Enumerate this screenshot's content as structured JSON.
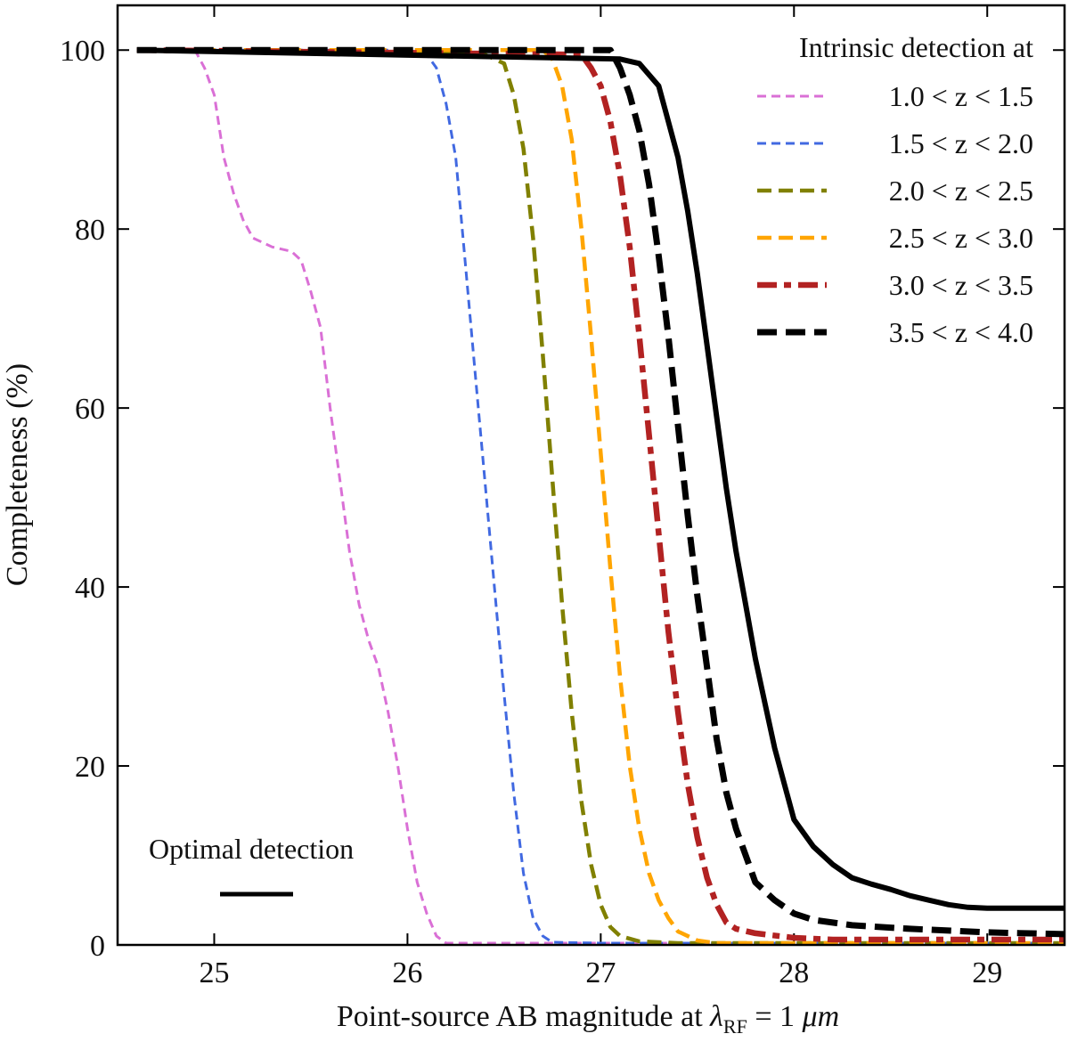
{
  "chart_data": {
    "type": "line",
    "title": "",
    "xlabel": "Point-source AB magnitude at λ_RF = 1 μm",
    "xlabel_parts": {
      "prefix": "Point-source AB magnitude at ",
      "lambda": "λ",
      "sub": "RF",
      "eq": " = 1 ",
      "unit": "μm"
    },
    "ylabel": "Completeness (%)",
    "xlim": [
      24.5,
      29.4
    ],
    "ylim": [
      0,
      105
    ],
    "xticks": [
      25,
      26,
      27,
      28,
      29
    ],
    "yticks": [
      0,
      20,
      40,
      60,
      80,
      100
    ],
    "legend": {
      "title": "Intrinsic detection at",
      "placement": "top-right"
    },
    "annotation": "Optimal detection",
    "series": [
      {
        "name": "1.0 < z < 1.5",
        "color": "#DA70D6",
        "style": "dashed-thin",
        "points": [
          [
            24.6,
            100
          ],
          [
            24.9,
            100
          ],
          [
            24.95,
            98
          ],
          [
            25.0,
            95
          ],
          [
            25.05,
            88
          ],
          [
            25.1,
            84
          ],
          [
            25.15,
            81
          ],
          [
            25.2,
            79
          ],
          [
            25.3,
            78
          ],
          [
            25.4,
            77.5
          ],
          [
            25.45,
            76.5
          ],
          [
            25.5,
            73
          ],
          [
            25.55,
            69
          ],
          [
            25.6,
            60
          ],
          [
            25.65,
            52
          ],
          [
            25.7,
            44
          ],
          [
            25.75,
            38
          ],
          [
            25.8,
            34
          ],
          [
            25.85,
            31
          ],
          [
            25.9,
            26
          ],
          [
            25.95,
            20
          ],
          [
            26.0,
            13
          ],
          [
            26.05,
            7
          ],
          [
            26.1,
            3.5
          ],
          [
            26.15,
            1
          ],
          [
            26.2,
            0.2
          ],
          [
            26.5,
            0.2
          ],
          [
            27.5,
            0.2
          ],
          [
            29.4,
            0.2
          ]
        ]
      },
      {
        "name": "1.5 < z < 2.0",
        "color": "#4169E1",
        "style": "dashed-thin",
        "points": [
          [
            24.6,
            100
          ],
          [
            26.0,
            100
          ],
          [
            26.1,
            99.5
          ],
          [
            26.15,
            98
          ],
          [
            26.2,
            94
          ],
          [
            26.25,
            88
          ],
          [
            26.3,
            76
          ],
          [
            26.35,
            64
          ],
          [
            26.4,
            52
          ],
          [
            26.45,
            40
          ],
          [
            26.5,
            28
          ],
          [
            26.55,
            17
          ],
          [
            26.6,
            8
          ],
          [
            26.65,
            3
          ],
          [
            26.7,
            1
          ],
          [
            26.75,
            0.3
          ],
          [
            27.0,
            0.2
          ],
          [
            29.4,
            0.2
          ]
        ]
      },
      {
        "name": "2.0 < z < 2.5",
        "color": "#808000",
        "style": "dashed-medium",
        "points": [
          [
            24.6,
            100
          ],
          [
            26.4,
            99.5
          ],
          [
            26.5,
            98.5
          ],
          [
            26.55,
            95
          ],
          [
            26.6,
            89
          ],
          [
            26.65,
            79
          ],
          [
            26.7,
            66
          ],
          [
            26.75,
            52
          ],
          [
            26.8,
            38
          ],
          [
            26.85,
            26
          ],
          [
            26.9,
            16
          ],
          [
            26.95,
            9
          ],
          [
            27.0,
            4.5
          ],
          [
            27.05,
            2
          ],
          [
            27.1,
            1
          ],
          [
            27.2,
            0.4
          ],
          [
            27.4,
            0.2
          ],
          [
            29.4,
            0.2
          ]
        ]
      },
      {
        "name": "2.5 < z < 3.0",
        "color": "#FFA500",
        "style": "dashed-medium",
        "points": [
          [
            24.6,
            100
          ],
          [
            26.7,
            100
          ],
          [
            26.75,
            99
          ],
          [
            26.8,
            96
          ],
          [
            26.85,
            90
          ],
          [
            26.9,
            80
          ],
          [
            26.95,
            68
          ],
          [
            27.0,
            55
          ],
          [
            27.05,
            42
          ],
          [
            27.1,
            30
          ],
          [
            27.15,
            20
          ],
          [
            27.2,
            13
          ],
          [
            27.25,
            8
          ],
          [
            27.3,
            5
          ],
          [
            27.35,
            3
          ],
          [
            27.4,
            1.5
          ],
          [
            27.5,
            0.5
          ],
          [
            27.6,
            0.2
          ],
          [
            29.4,
            0.2
          ]
        ]
      },
      {
        "name": "3.0 < z < 3.5",
        "color": "#B22222",
        "style": "dashdot-thick",
        "points": [
          [
            24.6,
            100
          ],
          [
            26.9,
            99.5
          ],
          [
            26.95,
            98
          ],
          [
            27.0,
            96
          ],
          [
            27.05,
            92
          ],
          [
            27.1,
            86
          ],
          [
            27.15,
            78
          ],
          [
            27.2,
            68
          ],
          [
            27.25,
            57
          ],
          [
            27.3,
            46
          ],
          [
            27.35,
            35
          ],
          [
            27.4,
            26
          ],
          [
            27.45,
            18
          ],
          [
            27.5,
            12
          ],
          [
            27.55,
            7.5
          ],
          [
            27.6,
            4.5
          ],
          [
            27.65,
            2.5
          ],
          [
            27.7,
            1.8
          ],
          [
            27.8,
            1.3
          ],
          [
            28.0,
            0.8
          ],
          [
            28.2,
            0.6
          ],
          [
            29.4,
            0.6
          ]
        ]
      },
      {
        "name": "3.5 < z < 4.0",
        "color": "#000000",
        "style": "dashed-thick",
        "points": [
          [
            24.6,
            100
          ],
          [
            27.05,
            100
          ],
          [
            27.1,
            98
          ],
          [
            27.15,
            95
          ],
          [
            27.2,
            91
          ],
          [
            27.25,
            85
          ],
          [
            27.3,
            77
          ],
          [
            27.35,
            68
          ],
          [
            27.4,
            58
          ],
          [
            27.45,
            48
          ],
          [
            27.5,
            39
          ],
          [
            27.55,
            31
          ],
          [
            27.6,
            23
          ],
          [
            27.65,
            17
          ],
          [
            27.7,
            13
          ],
          [
            27.75,
            10
          ],
          [
            27.8,
            7
          ],
          [
            27.9,
            5
          ],
          [
            28.0,
            3.5
          ],
          [
            28.1,
            2.8
          ],
          [
            28.3,
            2.2
          ],
          [
            28.6,
            1.8
          ],
          [
            29.0,
            1.4
          ],
          [
            29.4,
            1.2
          ]
        ]
      },
      {
        "name": "Optimal detection",
        "color": "#000000",
        "style": "solid",
        "points": [
          [
            24.6,
            100
          ],
          [
            27.1,
            99
          ],
          [
            27.2,
            98.5
          ],
          [
            27.3,
            96
          ],
          [
            27.35,
            92
          ],
          [
            27.4,
            88
          ],
          [
            27.45,
            82
          ],
          [
            27.5,
            75
          ],
          [
            27.55,
            67
          ],
          [
            27.6,
            59
          ],
          [
            27.65,
            51
          ],
          [
            27.7,
            44
          ],
          [
            27.75,
            38
          ],
          [
            27.8,
            32
          ],
          [
            27.85,
            27
          ],
          [
            27.9,
            22
          ],
          [
            27.95,
            18
          ],
          [
            28.0,
            14
          ],
          [
            28.1,
            11
          ],
          [
            28.2,
            9
          ],
          [
            28.3,
            7.5
          ],
          [
            28.4,
            6.8
          ],
          [
            28.5,
            6.2
          ],
          [
            28.6,
            5.5
          ],
          [
            28.7,
            5
          ],
          [
            28.8,
            4.5
          ],
          [
            28.9,
            4.2
          ],
          [
            29.0,
            4.1
          ],
          [
            29.4,
            4.1
          ]
        ]
      }
    ]
  }
}
